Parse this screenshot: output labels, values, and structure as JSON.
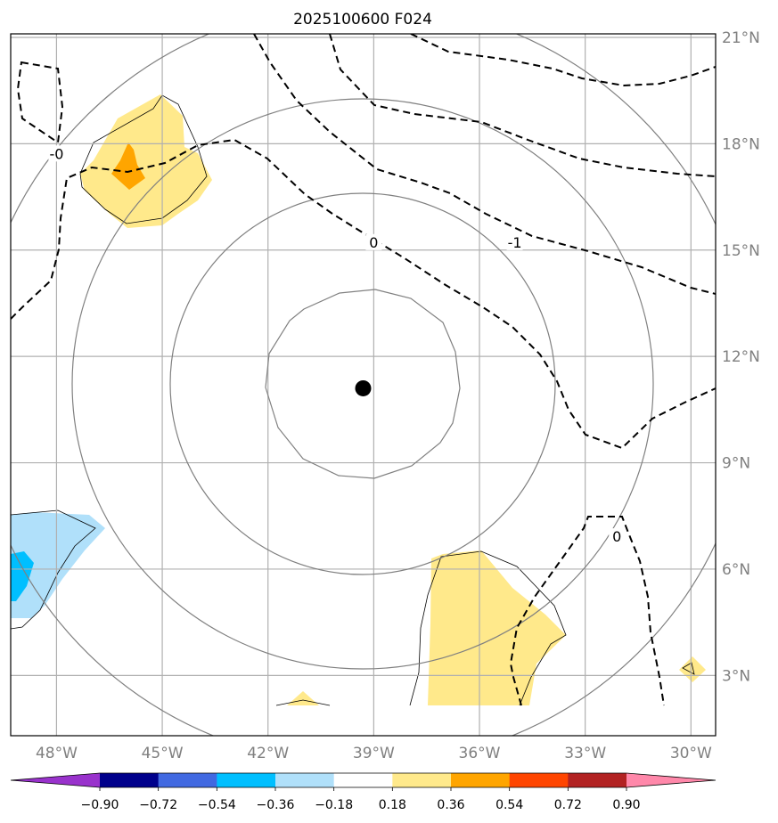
{
  "title": "2025100600 F024",
  "map": {
    "lon_range": [
      -49.3,
      -29.3
    ],
    "lat_range": [
      1.3,
      21.1
    ],
    "lon_ticks": [
      {
        "value": -48,
        "label": "48°W"
      },
      {
        "value": -45,
        "label": "45°W"
      },
      {
        "value": -42,
        "label": "42°W"
      },
      {
        "value": -39,
        "label": "39°W"
      },
      {
        "value": -36,
        "label": "36°W"
      },
      {
        "value": -33,
        "label": "33°W"
      },
      {
        "value": -30,
        "label": "30°W"
      }
    ],
    "lat_ticks": [
      {
        "value": 3,
        "label": "3°N"
      },
      {
        "value": 6,
        "label": "6°N"
      },
      {
        "value": 9,
        "label": "9°N"
      },
      {
        "value": 12,
        "label": "12°N"
      },
      {
        "value": 15,
        "label": "15°N"
      },
      {
        "value": 18,
        "label": "18°N"
      },
      {
        "value": 21,
        "label": "21°N"
      }
    ],
    "center_marker": {
      "lon": -39.3,
      "lat": 11.1
    },
    "range_rings_color": "#808080",
    "gridline_color": "#b0b0b0"
  },
  "contour_labels": [
    {
      "text": "-0",
      "lon": -48.0,
      "lat": 17.7
    },
    {
      "text": "0",
      "lon": -39.0,
      "lat": 15.2
    },
    {
      "text": "-1",
      "lon": -35.0,
      "lat": 15.2
    },
    {
      "text": "0",
      "lon": -32.1,
      "lat": 6.9
    }
  ],
  "colorbar": {
    "colors": [
      "#9932cc",
      "#00008b",
      "#4169e1",
      "#00bfff",
      "#b0e0fa",
      "#ffffff",
      "#ffe98b",
      "#ffa500",
      "#ff4500",
      "#b22222",
      "#ff88aa"
    ],
    "tick_labels": [
      "−0.90",
      "−0.72",
      "−0.54",
      "−0.36",
      "−0.18",
      "0.18",
      "0.36",
      "0.54",
      "0.72",
      "0.90"
    ],
    "boundaries": [
      -0.9,
      -0.72,
      -0.54,
      -0.36,
      -0.18,
      0.18,
      0.36,
      0.54,
      0.72,
      0.9
    ]
  }
}
